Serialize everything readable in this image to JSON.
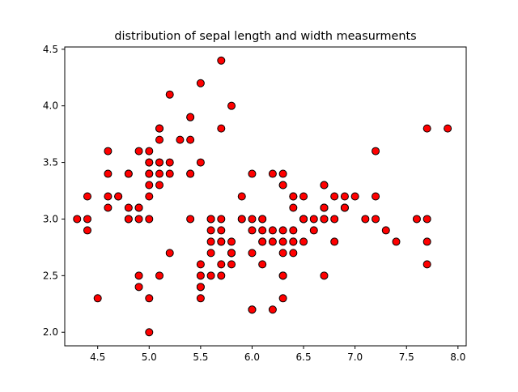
{
  "chart_data": {
    "type": "scatter",
    "title": "distribution of sepal length and width measurments",
    "xlabel": "",
    "ylabel": "",
    "xlim": [
      4.18,
      8.08
    ],
    "ylim": [
      1.88,
      4.52
    ],
    "xticks": [
      "4.5",
      "5.0",
      "5.5",
      "6.0",
      "6.5",
      "7.0",
      "7.5",
      "8.0"
    ],
    "yticks": [
      "2.0",
      "2.5",
      "3.0",
      "3.5",
      "4.0",
      "4.5"
    ],
    "xtick_values": [
      4.5,
      5.0,
      5.5,
      6.0,
      6.5,
      7.0,
      7.5,
      8.0
    ],
    "ytick_values": [
      2.0,
      2.5,
      3.0,
      3.5,
      4.0,
      4.5
    ],
    "grid": false,
    "marker_color": "#ff0000",
    "marker_edge_color": "#000000",
    "points": [
      [
        5.1,
        3.5
      ],
      [
        4.9,
        3.0
      ],
      [
        4.7,
        3.2
      ],
      [
        4.6,
        3.1
      ],
      [
        5.0,
        3.6
      ],
      [
        5.4,
        3.9
      ],
      [
        4.6,
        3.4
      ],
      [
        5.0,
        3.4
      ],
      [
        4.4,
        2.9
      ],
      [
        4.9,
        3.1
      ],
      [
        5.4,
        3.7
      ],
      [
        4.8,
        3.4
      ],
      [
        4.8,
        3.0
      ],
      [
        4.3,
        3.0
      ],
      [
        5.8,
        4.0
      ],
      [
        5.7,
        4.4
      ],
      [
        5.4,
        3.9
      ],
      [
        5.1,
        3.5
      ],
      [
        5.7,
        3.8
      ],
      [
        5.1,
        3.8
      ],
      [
        5.4,
        3.4
      ],
      [
        5.1,
        3.7
      ],
      [
        4.6,
        3.6
      ],
      [
        5.1,
        3.3
      ],
      [
        4.8,
        3.4
      ],
      [
        5.0,
        3.0
      ],
      [
        5.0,
        3.4
      ],
      [
        5.2,
        3.5
      ],
      [
        5.2,
        3.4
      ],
      [
        4.7,
        3.2
      ],
      [
        4.8,
        3.1
      ],
      [
        5.4,
        3.4
      ],
      [
        5.2,
        4.1
      ],
      [
        5.5,
        4.2
      ],
      [
        4.9,
        3.1
      ],
      [
        5.0,
        3.2
      ],
      [
        5.5,
        3.5
      ],
      [
        4.9,
        3.6
      ],
      [
        4.4,
        3.0
      ],
      [
        5.1,
        3.4
      ],
      [
        5.0,
        3.5
      ],
      [
        4.5,
        2.3
      ],
      [
        4.4,
        3.2
      ],
      [
        5.0,
        3.5
      ],
      [
        5.1,
        3.8
      ],
      [
        4.8,
        3.0
      ],
      [
        5.1,
        3.8
      ],
      [
        4.6,
        3.2
      ],
      [
        5.3,
        3.7
      ],
      [
        5.0,
        3.3
      ],
      [
        7.0,
        3.2
      ],
      [
        6.4,
        3.2
      ],
      [
        6.9,
        3.1
      ],
      [
        5.5,
        2.3
      ],
      [
        6.5,
        2.8
      ],
      [
        5.7,
        2.8
      ],
      [
        6.3,
        3.3
      ],
      [
        4.9,
        2.4
      ],
      [
        6.6,
        2.9
      ],
      [
        5.2,
        2.7
      ],
      [
        5.0,
        2.0
      ],
      [
        5.9,
        3.0
      ],
      [
        6.0,
        2.2
      ],
      [
        6.1,
        2.9
      ],
      [
        5.6,
        2.9
      ],
      [
        6.7,
        3.1
      ],
      [
        5.6,
        3.0
      ],
      [
        5.8,
        2.7
      ],
      [
        6.2,
        2.2
      ],
      [
        5.6,
        2.5
      ],
      [
        5.9,
        3.2
      ],
      [
        6.1,
        2.8
      ],
      [
        6.3,
        2.5
      ],
      [
        6.1,
        2.8
      ],
      [
        6.4,
        2.9
      ],
      [
        6.6,
        3.0
      ],
      [
        6.8,
        2.8
      ],
      [
        6.7,
        3.0
      ],
      [
        6.0,
        2.9
      ],
      [
        5.7,
        2.6
      ],
      [
        5.5,
        2.4
      ],
      [
        5.5,
        2.4
      ],
      [
        5.8,
        2.7
      ],
      [
        6.0,
        2.7
      ],
      [
        5.4,
        3.0
      ],
      [
        6.0,
        3.4
      ],
      [
        6.7,
        3.1
      ],
      [
        6.3,
        2.3
      ],
      [
        5.6,
        3.0
      ],
      [
        5.5,
        2.5
      ],
      [
        5.5,
        2.6
      ],
      [
        6.1,
        3.0
      ],
      [
        5.8,
        2.6
      ],
      [
        5.0,
        2.3
      ],
      [
        5.6,
        2.7
      ],
      [
        5.7,
        3.0
      ],
      [
        5.7,
        2.9
      ],
      [
        6.2,
        2.9
      ],
      [
        5.1,
        2.5
      ],
      [
        5.7,
        2.8
      ],
      [
        6.3,
        3.3
      ],
      [
        5.8,
        2.7
      ],
      [
        7.1,
        3.0
      ],
      [
        6.3,
        2.9
      ],
      [
        6.5,
        3.0
      ],
      [
        7.6,
        3.0
      ],
      [
        4.9,
        2.5
      ],
      [
        7.3,
        2.9
      ],
      [
        6.7,
        2.5
      ],
      [
        7.2,
        3.6
      ],
      [
        6.5,
        3.2
      ],
      [
        6.4,
        2.7
      ],
      [
        6.8,
        3.0
      ],
      [
        5.7,
        2.5
      ],
      [
        5.8,
        2.8
      ],
      [
        6.4,
        3.2
      ],
      [
        6.5,
        3.0
      ],
      [
        7.7,
        3.8
      ],
      [
        7.7,
        2.6
      ],
      [
        6.0,
        2.2
      ],
      [
        6.9,
        3.2
      ],
      [
        5.6,
        2.8
      ],
      [
        7.7,
        2.8
      ],
      [
        6.3,
        2.7
      ],
      [
        6.7,
        3.3
      ],
      [
        7.2,
        3.2
      ],
      [
        6.2,
        2.8
      ],
      [
        6.1,
        3.0
      ],
      [
        6.4,
        2.8
      ],
      [
        7.2,
        3.0
      ],
      [
        7.4,
        2.8
      ],
      [
        7.9,
        3.8
      ],
      [
        6.4,
        2.8
      ],
      [
        6.3,
        2.8
      ],
      [
        6.1,
        2.6
      ],
      [
        7.7,
        3.0
      ],
      [
        6.3,
        3.4
      ],
      [
        6.4,
        3.1
      ],
      [
        6.0,
        3.0
      ],
      [
        6.9,
        3.1
      ],
      [
        6.7,
        3.1
      ],
      [
        6.9,
        3.1
      ],
      [
        5.8,
        2.7
      ],
      [
        6.8,
        3.2
      ],
      [
        6.7,
        3.3
      ],
      [
        6.7,
        3.0
      ],
      [
        6.3,
        2.5
      ],
      [
        6.5,
        3.0
      ],
      [
        6.2,
        3.4
      ],
      [
        5.9,
        3.0
      ]
    ]
  }
}
